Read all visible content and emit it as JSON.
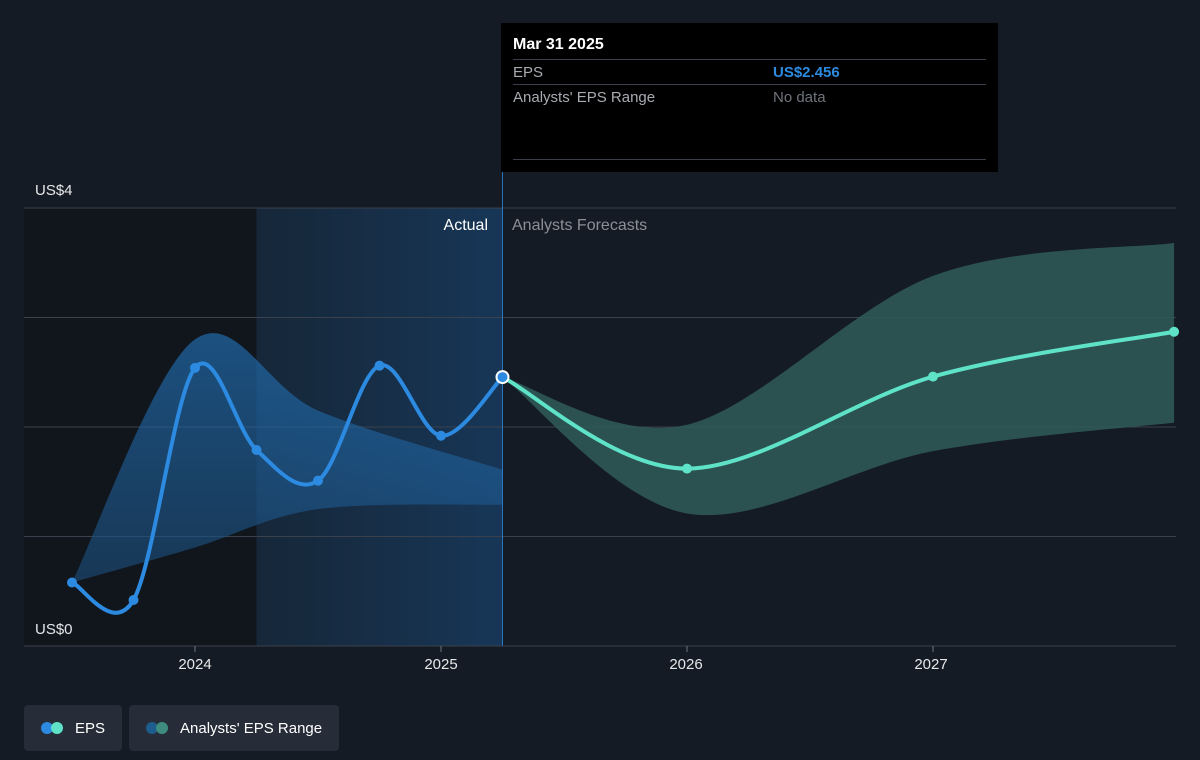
{
  "tooltip": {
    "date": "Mar 31 2025",
    "rows": [
      {
        "label": "EPS",
        "value": "US$2.456"
      },
      {
        "label": "Analysts' EPS Range",
        "value": "No data"
      }
    ]
  },
  "labels": {
    "actual": "Actual",
    "forecast": "Analysts Forecasts"
  },
  "legend": [
    {
      "label": "EPS",
      "colors": [
        "#2c8ae0",
        "#5fe3c8"
      ]
    },
    {
      "label": "Analysts' EPS Range",
      "colors": [
        "#1e5c8c",
        "#3e8c80"
      ]
    }
  ],
  "colors": {
    "background": "#151b24",
    "actual_line": "#2c8ae0",
    "forecast_line": "#5fe3c8",
    "actual_band": "#1e5c8c",
    "forecast_band": "#2f5c58",
    "gridline": "#3a414c"
  },
  "chart_data": {
    "type": "line",
    "ylim": [
      0,
      4
    ],
    "ytick_labels": [
      "US$0",
      "US$4"
    ],
    "xtick_labels": [
      "2024",
      "2025",
      "2026",
      "2027"
    ],
    "xticks": [
      2024,
      2025,
      2026,
      2027
    ],
    "split_x": 2025.25,
    "series": [
      {
        "name": "EPS",
        "segment": "actual",
        "x": [
          2023.5,
          2023.75,
          2024.0,
          2024.25,
          2024.5,
          2024.75,
          2025.0,
          2025.25
        ],
        "y": [
          0.58,
          0.42,
          2.54,
          1.79,
          1.51,
          2.56,
          1.92,
          2.456
        ]
      },
      {
        "name": "EPS",
        "segment": "forecast",
        "x": [
          2025.25,
          2026.0,
          2027.0,
          2027.98
        ],
        "y": [
          2.456,
          1.62,
          2.46,
          2.87
        ]
      }
    ],
    "ranges": [
      {
        "name": "Analysts' EPS Range",
        "segment": "actual",
        "x": [
          2023.5,
          2024.0,
          2024.5,
          2025.25
        ],
        "high": [
          0.58,
          2.8,
          2.15,
          1.61
        ],
        "low": [
          0.58,
          0.9,
          1.25,
          1.29
        ]
      },
      {
        "name": "Analysts' EPS Range",
        "segment": "forecast",
        "x": [
          2025.25,
          2026.0,
          2027.0,
          2027.98
        ],
        "high": [
          2.456,
          2.02,
          3.38,
          3.68
        ],
        "low": [
          2.456,
          1.21,
          1.78,
          2.04
        ]
      }
    ],
    "highlight": {
      "x": 2025.25,
      "y": 2.456
    }
  }
}
